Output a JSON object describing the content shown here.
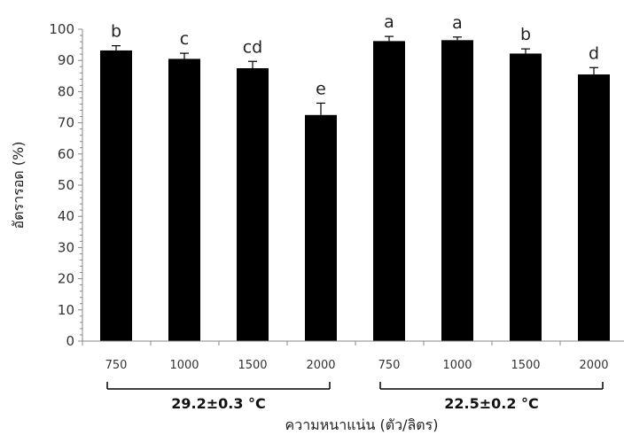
{
  "chart_data": {
    "type": "bar",
    "xlabel": "ความหนาแน่น (ตัว/ลิตร)",
    "ylabel": "อัตรารอด (%)",
    "ylim": [
      0,
      100
    ],
    "yticks": [
      0,
      10,
      20,
      30,
      40,
      50,
      60,
      70,
      80,
      90,
      100
    ],
    "grid": false,
    "categories": [
      "750",
      "1000",
      "1500",
      "2000",
      "750",
      "1000",
      "1500",
      "2000"
    ],
    "values": [
      93.2,
      90.5,
      87.5,
      72.5,
      96.2,
      96.5,
      92.2,
      85.5
    ],
    "errors": [
      1.5,
      1.8,
      2.2,
      3.8,
      1.5,
      1.0,
      1.5,
      2.2
    ],
    "significance_labels": [
      "b",
      "c",
      "cd",
      "e",
      "a",
      "a",
      "b",
      "d"
    ],
    "groups": [
      {
        "label": "29.2±0.3 °C",
        "start": 0,
        "end": 3
      },
      {
        "label": "22.5±0.2 °C",
        "start": 4,
        "end": 7
      }
    ],
    "bar_color": "#000000"
  }
}
